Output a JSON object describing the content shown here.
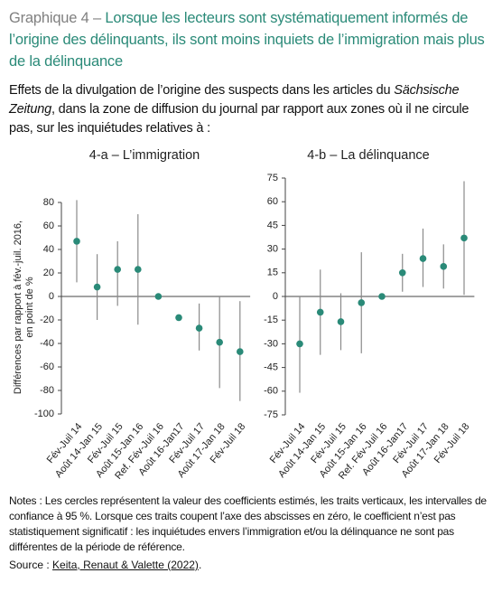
{
  "header": {
    "label": "Graphique 4 –",
    "title": "Lorsque les lecteurs sont systématiquement informés de l’origine des délinquants, ils sont moins inquiets de l’immigration mais plus de la délinquance"
  },
  "subtitle": {
    "before": "Effets de la divulgation de l’origine des suspects dans les articles du",
    "italic": "Sächsische Zeitung",
    "after": ", dans la zone de diffusion du journal par rapport aux zones où il ne circule pas, sur les inquiétudes relatives à :"
  },
  "chart_data": [
    {
      "type": "errorbar",
      "title": "4-a – L’immigration",
      "y_label": [
        "Différences par rapport à fév.-juil. 2016,",
        "en point de %"
      ],
      "categories": [
        "Fév-Juil 14",
        "Août 14-Jan 15",
        "Fév-Juil 15",
        "Août 15-Jan 16",
        "Ref. Fév-Juil 16",
        "Août 16-Jan17",
        "Fév-Juil 17",
        "Août 17-Jan 18",
        "Fév-Juil 18"
      ],
      "values": [
        47,
        8,
        23,
        23,
        0,
        -18,
        -27,
        -39,
        -47
      ],
      "ci_low": [
        12,
        -20,
        -8,
        -24,
        null,
        null,
        -46,
        -78,
        -89
      ],
      "ci_high": [
        82,
        36,
        47,
        70,
        null,
        null,
        -6,
        0,
        -4
      ],
      "ylim": [
        -100,
        80
      ],
      "yticks": [
        80,
        60,
        40,
        20,
        0,
        -20,
        -40,
        -60,
        -80,
        -100
      ],
      "color": "#2a8a78"
    },
    {
      "type": "errorbar",
      "title": "4-b – La délinquance",
      "categories": [
        "Fév-Juil 14",
        "Août 14-Jan 15",
        "Fév-Juil 15",
        "Août 15-Jan 16",
        "Ref. Fév-Juil 16",
        "Août 16-Jan17",
        "Fév-Juil 17",
        "Août 17-Jan 18",
        "Fév-Juil 18"
      ],
      "values": [
        -30,
        -10,
        -16,
        -4,
        0,
        15,
        24,
        19,
        37
      ],
      "ci_low": [
        -61,
        -37,
        -34,
        -36,
        null,
        3,
        6,
        5,
        1
      ],
      "ci_high": [
        0,
        17,
        2,
        28,
        null,
        27,
        43,
        33,
        73
      ],
      "ylim": [
        -75,
        75
      ],
      "yticks": [
        75,
        60,
        45,
        30,
        15,
        0,
        -15,
        -30,
        -45,
        -60,
        -75
      ],
      "color": "#2a8a78"
    }
  ],
  "notes": "Notes : Les cercles représentent la valeur des coefficients estimés, les traits verticaux, les intervalles de confiance à 95 %. Lorsque ces traits coupent l’axe des abscisses en zéro, le coefficient n’est pas statistiquement significatif : les inquiétudes envers l’immigration et/ou la délinquance ne sont pas différentes de la période de référence.",
  "source": {
    "label": "Source :",
    "link": "Keita, Renaut & Valette (2022)",
    "end": "."
  }
}
